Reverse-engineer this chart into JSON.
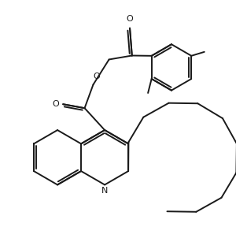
{
  "bg_color": "#ffffff",
  "line_color": "#1a1a1a",
  "line_width": 1.4,
  "fig_width": 3.14,
  "fig_height": 2.88,
  "dpi": 100,
  "N_label": "N",
  "O_label": "O"
}
